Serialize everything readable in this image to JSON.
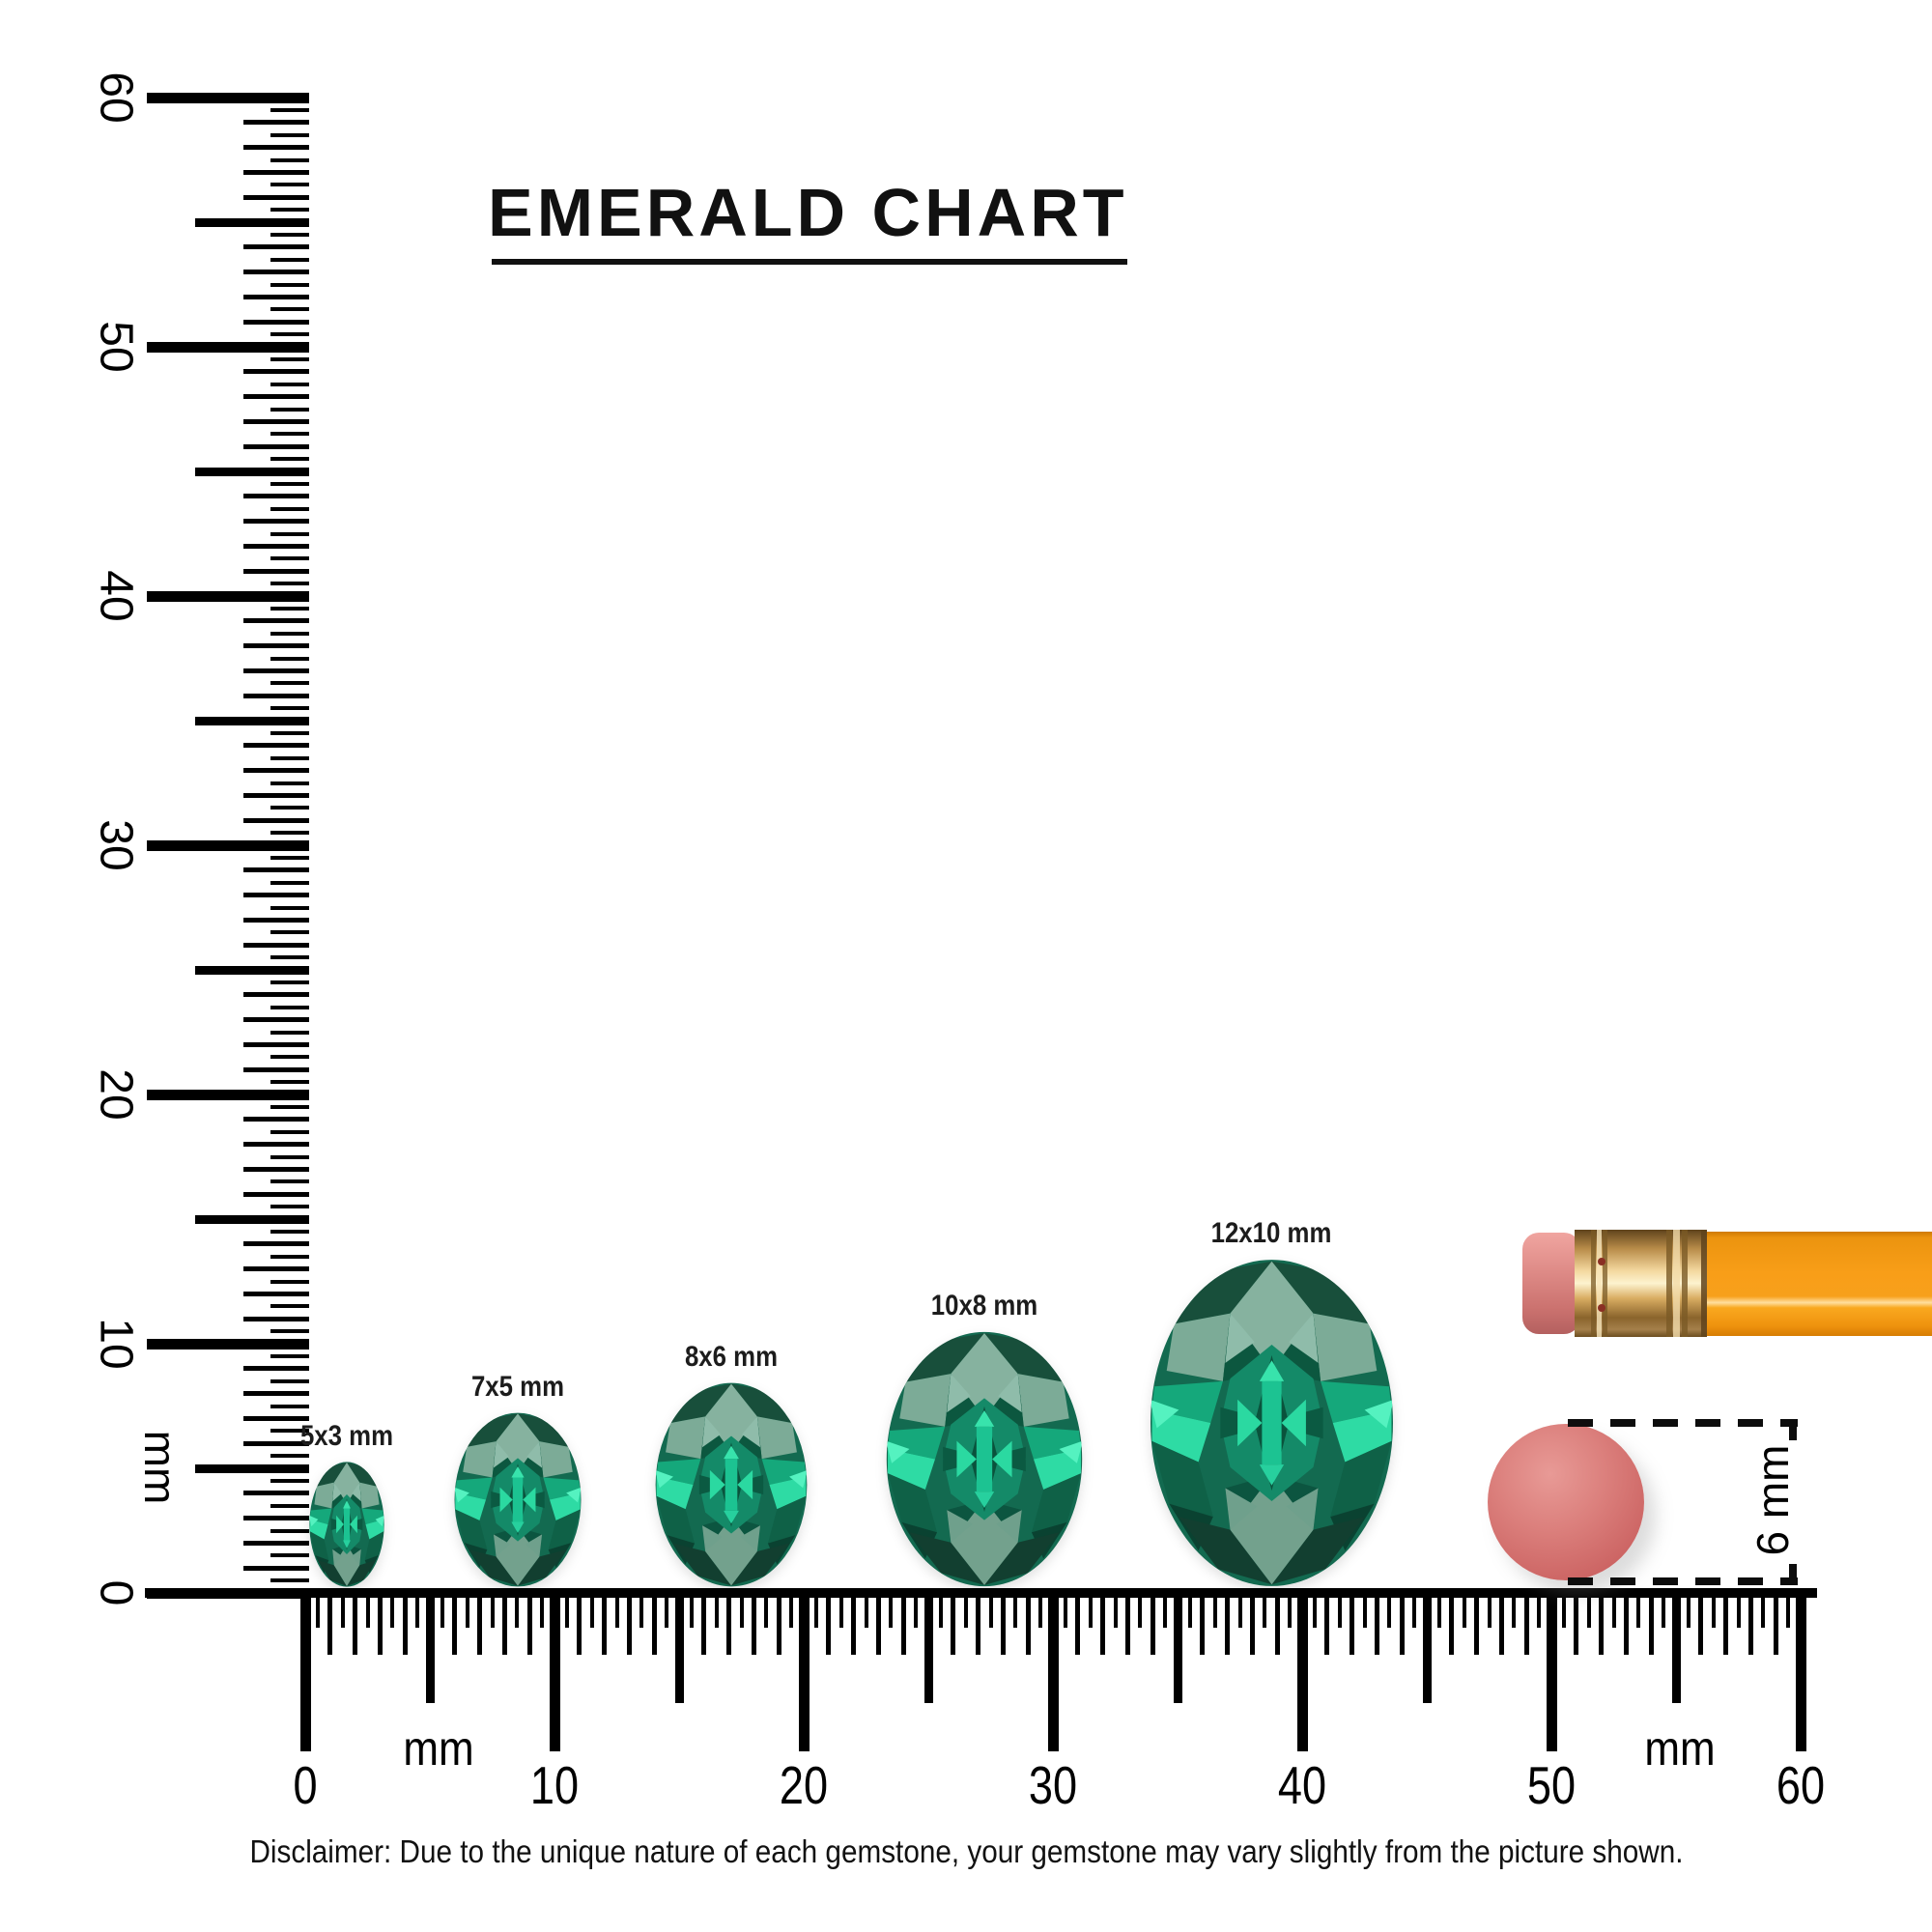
{
  "title": {
    "text": "EMERALD CHART"
  },
  "gem_chart": {
    "stone": "Emerald",
    "shape": "oval",
    "sizes": [
      {
        "label": "5x3 mm",
        "width_mm": 3,
        "height_mm": 5
      },
      {
        "label": "7x5 mm",
        "width_mm": 5,
        "height_mm": 7
      },
      {
        "label": "8x6 mm",
        "width_mm": 6,
        "height_mm": 8
      },
      {
        "label": "10x8 mm",
        "width_mm": 8,
        "height_mm": 10
      },
      {
        "label": "12x10 mm",
        "width_mm": 10,
        "height_mm": 12
      }
    ]
  },
  "left_ruler": {
    "unit_label": "mm",
    "min_mm": 0,
    "max_mm": 60,
    "major_labels": [
      "60",
      "50",
      "40",
      "30",
      "20",
      "10",
      "0"
    ]
  },
  "bottom_ruler": {
    "unit_label_left": "mm",
    "unit_label_right": "mm",
    "min_mm": 0,
    "max_mm": 60,
    "major_labels": [
      "0",
      "10",
      "20",
      "30",
      "40",
      "50",
      "60"
    ]
  },
  "size_reference": {
    "dot_label": "6 mm",
    "dot_diameter_mm": 6,
    "objects": [
      "pencil-with-eraser",
      "round-eraser-dot"
    ]
  },
  "disclaimer": "Disclaimer: Due to the unique nature of each gemstone, your gemstone may vary slightly from the picture shown.",
  "colors": {
    "ink": "#000000",
    "gem_base": "#136a50",
    "gem_pale_facet": "#86b29f",
    "gem_dark_facet": "#0c573f",
    "gem_bright": "#2edba4",
    "pencil_body": "#f89e18",
    "pencil_ferrule": "#d9ad62",
    "pencil_eraser": "#e08d89",
    "eraser_dot": "#cc6463"
  }
}
